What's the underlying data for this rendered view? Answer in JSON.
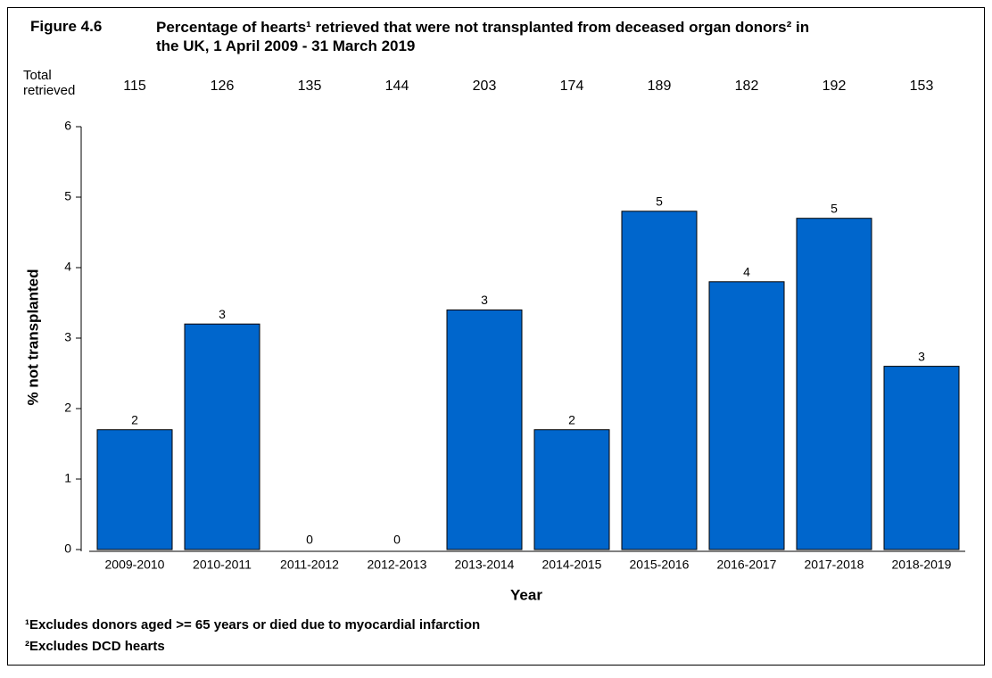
{
  "chart_data": {
    "type": "bar",
    "figure_label": "Figure 4.6",
    "title": "Percentage of hearts¹ retrieved that were not transplanted from deceased organ donors² in the UK, 1 April 2009 - 31 March 2019",
    "totals_label": "Total retrieved",
    "totals": [
      115,
      126,
      135,
      144,
      203,
      174,
      189,
      182,
      192,
      153
    ],
    "categories": [
      "2009-2010",
      "2010-2011",
      "2011-2012",
      "2012-2013",
      "2013-2014",
      "2014-2015",
      "2015-2016",
      "2016-2017",
      "2017-2018",
      "2018-2019"
    ],
    "values": [
      1.7,
      3.2,
      0,
      0,
      3.4,
      1.7,
      4.8,
      3.8,
      4.7,
      2.6
    ],
    "value_labels": [
      "2",
      "3",
      "0",
      "0",
      "3",
      "2",
      "5",
      "4",
      "5",
      "3"
    ],
    "color": "#0066cc",
    "x_label": "Year",
    "y_label": "% not transplanted",
    "ylim": [
      0,
      6
    ],
    "yticks": [
      0,
      1,
      2,
      3,
      4,
      5,
      6
    ],
    "grid": false,
    "footnotes": [
      "¹Excludes donors aged >= 65 years or died due to myocardial infarction",
      "²Excludes DCD hearts"
    ]
  }
}
